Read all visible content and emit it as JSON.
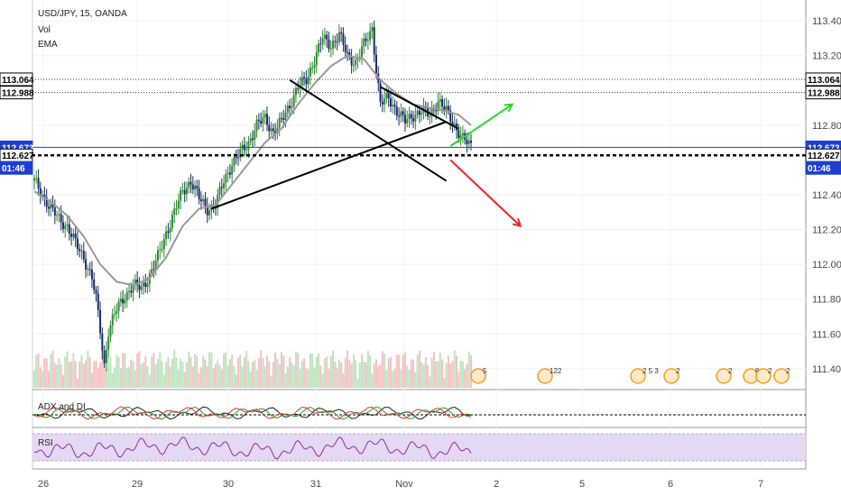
{
  "chart_data": {
    "type": "candlestick",
    "title": "USD/JPY, 15, OANDA",
    "indicators": [
      "Vol",
      "EMA"
    ],
    "y_axis": {
      "range": [
        111.28,
        113.52
      ],
      "ticks": [
        "113.400",
        "113.200",
        "112.800",
        "112.400",
        "112.200",
        "112.000",
        "111.800",
        "111.600",
        "111.400"
      ]
    },
    "x_axis": {
      "ticks": [
        "26",
        "29",
        "30",
        "31",
        "Nov",
        "2",
        "5",
        "6",
        "7"
      ]
    },
    "price_tags": [
      {
        "value": "113.064",
        "style": "outline"
      },
      {
        "value": "112.988",
        "style": "outline"
      },
      {
        "value": "112.673",
        "style": "blue"
      },
      {
        "value": "112.627",
        "style": "outline-bold"
      },
      {
        "value": "01:46",
        "style": "blue"
      }
    ],
    "horizontal_levels": [
      113.064,
      112.988,
      112.673,
      112.627
    ],
    "series": [
      {
        "name": "USD/JPY",
        "kind": "price",
        "points": [
          [
            0,
            112.48
          ],
          [
            4,
            112.4
          ],
          [
            8,
            112.32
          ],
          [
            12,
            112.26
          ],
          [
            16,
            112.22
          ],
          [
            20,
            112.12
          ],
          [
            24,
            112.04
          ],
          [
            28,
            111.92
          ],
          [
            30,
            111.8
          ],
          [
            32,
            111.62
          ],
          [
            34,
            111.42
          ],
          [
            36,
            111.62
          ],
          [
            40,
            111.74
          ],
          [
            44,
            111.82
          ],
          [
            48,
            111.88
          ],
          [
            52,
            111.86
          ],
          [
            56,
            111.94
          ],
          [
            60,
            112.04
          ],
          [
            64,
            112.18
          ],
          [
            68,
            112.3
          ],
          [
            72,
            112.42
          ],
          [
            76,
            112.48
          ],
          [
            80,
            112.38
          ],
          [
            84,
            112.32
          ],
          [
            88,
            112.34
          ],
          [
            92,
            112.48
          ],
          [
            96,
            112.58
          ],
          [
            100,
            112.64
          ],
          [
            104,
            112.7
          ],
          [
            108,
            112.8
          ],
          [
            112,
            112.84
          ],
          [
            116,
            112.76
          ],
          [
            120,
            112.82
          ],
          [
            124,
            112.92
          ],
          [
            128,
            113.02
          ],
          [
            132,
            113.06
          ],
          [
            136,
            113.18
          ],
          [
            140,
            113.3
          ],
          [
            144,
            113.26
          ],
          [
            148,
            113.32
          ],
          [
            152,
            113.2
          ],
          [
            156,
            113.16
          ],
          [
            160,
            113.26
          ],
          [
            164,
            113.36
          ],
          [
            166,
            113.12
          ],
          [
            168,
            112.92
          ],
          [
            172,
            112.96
          ],
          [
            176,
            112.88
          ],
          [
            180,
            112.82
          ],
          [
            184,
            112.86
          ],
          [
            188,
            112.88
          ],
          [
            192,
            112.86
          ],
          [
            196,
            112.94
          ],
          [
            200,
            112.88
          ],
          [
            204,
            112.8
          ],
          [
            208,
            112.72
          ],
          [
            212,
            112.68
          ]
        ]
      },
      {
        "name": "EMA",
        "kind": "ema",
        "points": [
          [
            0,
            112.42
          ],
          [
            8,
            112.36
          ],
          [
            16,
            112.28
          ],
          [
            24,
            112.16
          ],
          [
            32,
            112.0
          ],
          [
            40,
            111.9
          ],
          [
            48,
            111.88
          ],
          [
            56,
            111.92
          ],
          [
            64,
            112.04
          ],
          [
            72,
            112.22
          ],
          [
            80,
            112.32
          ],
          [
            88,
            112.34
          ],
          [
            96,
            112.46
          ],
          [
            104,
            112.58
          ],
          [
            112,
            112.7
          ],
          [
            120,
            112.78
          ],
          [
            128,
            112.92
          ],
          [
            136,
            113.04
          ],
          [
            144,
            113.14
          ],
          [
            152,
            113.2
          ],
          [
            160,
            113.18
          ],
          [
            168,
            113.06
          ],
          [
            176,
            112.98
          ],
          [
            184,
            112.92
          ],
          [
            192,
            112.9
          ],
          [
            200,
            112.88
          ],
          [
            206,
            112.86
          ],
          [
            212,
            112.8
          ]
        ]
      }
    ],
    "trendlines": [
      {
        "from": [
          86,
          112.32
        ],
        "to": [
          200,
          112.82
        ],
        "color": "#000000"
      },
      {
        "from": [
          124,
          113.06
        ],
        "to": [
          200,
          112.48
        ],
        "color": "#000000"
      },
      {
        "from": [
          168,
          113.02
        ],
        "to": [
          206,
          112.78
        ],
        "color": "#000000"
      },
      {
        "from": [
          202,
          112.68
        ],
        "to": [
          232,
          112.92
        ],
        "color": "#22dd22"
      },
      {
        "from": [
          202,
          112.6
        ],
        "to": [
          236,
          112.22
        ],
        "color": "#ee2222"
      }
    ],
    "panes": [
      {
        "label": "ADX and DI"
      },
      {
        "label": "RSI"
      }
    ],
    "event_markers": [
      {
        "label": "5"
      },
      {
        "label": "122"
      },
      {
        "label": "2 5 3"
      },
      {
        "label": "2"
      },
      {
        "label": "2"
      },
      {
        "label": "8"
      },
      {
        "label": "2"
      },
      {
        "label": "2"
      }
    ],
    "colors": {
      "up": "#2f8a2f",
      "down": "#1a2b6b",
      "ema": "#9a9a9a",
      "blue_tag": "#1f3fd1",
      "rsi_band": "#e4d8f2",
      "rsi_line": "#8a2fa8"
    }
  }
}
